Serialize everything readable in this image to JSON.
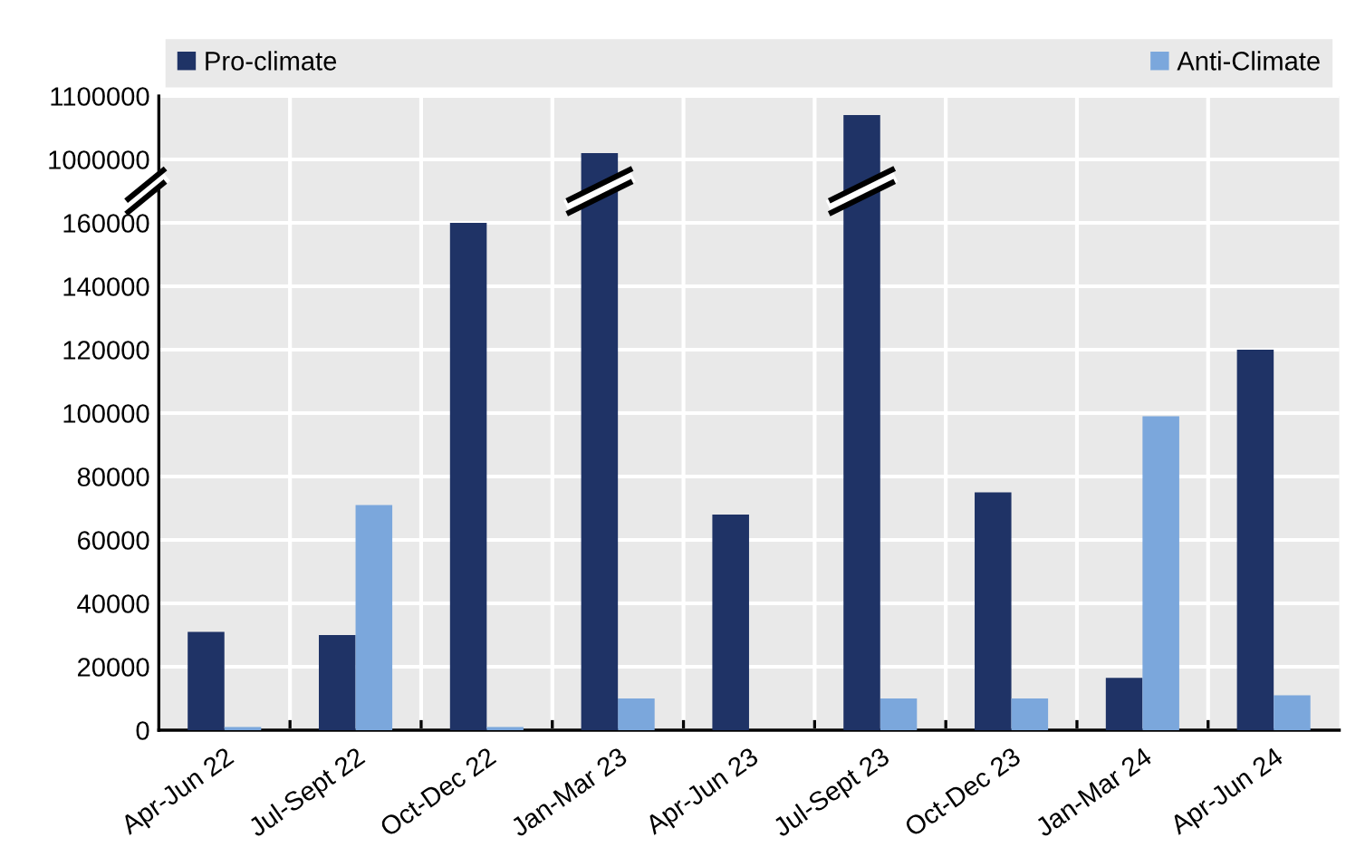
{
  "chart_data": [
    {
      "type": "bar",
      "series": [
        {
          "name": "Pro-climate",
          "color": "#1f3366",
          "values": [
            null,
            null,
            null,
            1010000,
            null,
            1070000,
            null,
            null,
            null
          ]
        },
        {
          "name": "Anti-Climate",
          "color": "#7ba7dc",
          "values": [
            null,
            null,
            null,
            null,
            null,
            null,
            null,
            null,
            null
          ]
        }
      ],
      "ylim": [
        950000,
        1100000
      ],
      "yticks": [
        1000000,
        1100000
      ],
      "tick_labels": "y",
      "grid": true,
      "legend": "top"
    },
    {
      "type": "bar",
      "categories": [
        "Apr-Jun 22",
        "Jul-Sept 22",
        "Oct-Dec 22",
        "Jan-Mar 23",
        "Apr-Jun 23",
        "Jul-Sept 23",
        "Oct-Dec 23",
        "Jan-Mar 24",
        "Apr-Jun 24"
      ],
      "series": [
        {
          "color": "#1f3366",
          "values": [
            31000,
            30000,
            160000,
            null,
            68000,
            null,
            75000,
            16500,
            120000
          ]
        },
        {
          "color": "#7ba7dc",
          "values": [
            1000,
            71000,
            1000,
            10000,
            0,
            10000,
            10000,
            99000,
            11000
          ]
        }
      ],
      "ylim": [
        0,
        170000
      ],
      "yticks": [
        0,
        20000,
        40000,
        60000,
        80000,
        100000,
        120000,
        140000,
        160000
      ],
      "grid": true
    }
  ]
}
